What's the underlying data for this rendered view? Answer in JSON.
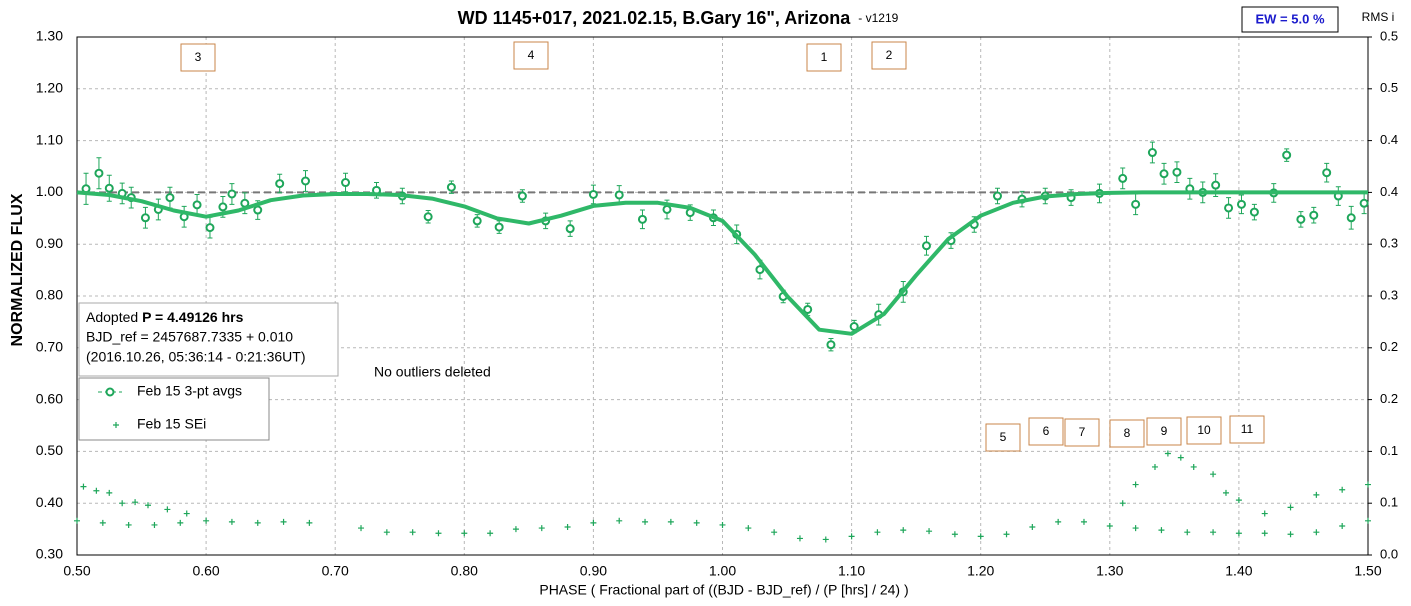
{
  "chart_data": {
    "type": "scatter",
    "title": "WD 1145+017, 2021.02.15, B.Gary 16\", Arizona",
    "version": "-  v1219",
    "xlabel": "PHASE ( Fractional part of ((BJD - BJD_ref) / (P [hrs] / 24) )",
    "ylabel": "NORMALIZED FLUX",
    "y2label": "RMS i",
    "xlim": [
      0.5,
      1.5
    ],
    "xticks": [
      {
        "value": 0.5,
        "label": "0.50"
      },
      {
        "value": 0.6,
        "label": "0.60"
      },
      {
        "value": 0.7,
        "label": "0.70"
      },
      {
        "value": 0.8,
        "label": "0.80"
      },
      {
        "value": 0.9,
        "label": "0.90"
      },
      {
        "value": 1.0,
        "label": "1.00"
      },
      {
        "value": 1.1,
        "label": "1.10"
      },
      {
        "value": 1.2,
        "label": "1.20"
      },
      {
        "value": 1.3,
        "label": "1.30"
      },
      {
        "value": 1.4,
        "label": "1.40"
      },
      {
        "value": 1.5,
        "label": "1.50"
      }
    ],
    "ylim": [
      0.3,
      1.3
    ],
    "yticks": [
      {
        "value": 0.3,
        "label": "0.30"
      },
      {
        "value": 0.4,
        "label": "0.40"
      },
      {
        "value": 0.5,
        "label": "0.50"
      },
      {
        "value": 0.6,
        "label": "0.60"
      },
      {
        "value": 0.7,
        "label": "0.70"
      },
      {
        "value": 0.8,
        "label": "0.80"
      },
      {
        "value": 0.9,
        "label": "0.90"
      },
      {
        "value": 1.0,
        "label": "1.00"
      },
      {
        "value": 1.1,
        "label": "1.10"
      },
      {
        "value": 1.2,
        "label": "1.20"
      },
      {
        "value": 1.3,
        "label": "1.30"
      }
    ],
    "y2lim": [
      0,
      0.5
    ],
    "y2ticks": [
      {
        "value": 0,
        "label": "0.0"
      },
      {
        "value": 0.05,
        "label": "0.1"
      },
      0.1,
      {
        "value": 0.15,
        "label": "0.2"
      },
      0.2,
      {
        "value": 0.25,
        "label": "0.3"
      },
      0.3,
      {
        "value": 0.35,
        "label": "0.4"
      },
      0.4,
      {
        "value": 0.45,
        "label": "0.5"
      },
      0.5
    ],
    "grid": true,
    "reference_y": 1.0,
    "legend": "left",
    "series": [
      {
        "name": "Feb 15 3-pt avgs",
        "color": "#1ea65a",
        "marker": "circle",
        "x": [
          0.507,
          0.517,
          0.525,
          0.535,
          0.542,
          0.553,
          0.563,
          0.572,
          0.583,
          0.593,
          0.603,
          0.613,
          0.62,
          0.63,
          0.64,
          0.657,
          0.677,
          0.708,
          0.732,
          0.752,
          0.772,
          0.79,
          0.81,
          0.827,
          0.845,
          0.863,
          0.882,
          0.9,
          0.92,
          0.938,
          0.957,
          0.975,
          0.993,
          1.011,
          1.029,
          1.047,
          1.066,
          1.084,
          1.102,
          1.121,
          1.14,
          1.158,
          1.177,
          1.195,
          1.213,
          1.232,
          1.25,
          1.27,
          1.292,
          1.31,
          1.32,
          1.333,
          1.342,
          1.352,
          1.362,
          1.372,
          1.382,
          1.392,
          1.402,
          1.412,
          1.427,
          1.437,
          1.448,
          1.458,
          1.468,
          1.477,
          1.487,
          1.497
        ],
        "values": [
          1.007,
          1.037,
          1.008,
          0.998,
          0.99,
          0.951,
          0.967,
          0.99,
          0.953,
          0.976,
          0.932,
          0.972,
          0.997,
          0.979,
          0.966,
          1.017,
          1.022,
          1.019,
          1.004,
          0.993,
          0.953,
          1.01,
          0.945,
          0.933,
          0.993,
          0.945,
          0.93,
          0.996,
          0.995,
          0.948,
          0.967,
          0.961,
          0.951,
          0.919,
          0.851,
          0.799,
          0.774,
          0.706,
          0.741,
          0.764,
          0.808,
          0.897,
          0.907,
          0.938,
          0.993,
          0.987,
          0.993,
          0.99,
          0.998,
          1.027,
          0.977,
          1.077,
          1.036,
          1.039,
          1.007,
          1.0,
          1.014,
          0.97,
          0.977,
          0.962,
          0.999,
          1.072,
          0.948,
          0.956,
          1.038,
          0.993,
          0.951,
          0.979
        ],
        "errors": [
          0.03,
          0.03,
          0.025,
          0.02,
          0.02,
          0.02,
          0.02,
          0.02,
          0.02,
          0.02,
          0.02,
          0.02,
          0.02,
          0.02,
          0.018,
          0.018,
          0.02,
          0.018,
          0.015,
          0.015,
          0.012,
          0.012,
          0.012,
          0.012,
          0.012,
          0.015,
          0.015,
          0.018,
          0.018,
          0.018,
          0.018,
          0.015,
          0.015,
          0.018,
          0.018,
          0.012,
          0.012,
          0.012,
          0.012,
          0.02,
          0.02,
          0.018,
          0.015,
          0.015,
          0.015,
          0.015,
          0.015,
          0.015,
          0.018,
          0.02,
          0.02,
          0.02,
          0.02,
          0.02,
          0.02,
          0.02,
          0.022,
          0.02,
          0.018,
          0.015,
          0.018,
          0.012,
          0.015,
          0.015,
          0.018,
          0.018,
          0.022,
          0.02
        ]
      },
      {
        "type": "line",
        "color": "#2fb868",
        "x": [
          0.5,
          0.525,
          0.55,
          0.575,
          0.6,
          0.625,
          0.65,
          0.675,
          0.7,
          0.725,
          0.75,
          0.775,
          0.8,
          0.825,
          0.85,
          0.875,
          0.9,
          0.925,
          0.95,
          0.975,
          1.0,
          1.025,
          1.05,
          1.075,
          1.1,
          1.125,
          1.15,
          1.175,
          1.2,
          1.225,
          1.25,
          1.275,
          1.3,
          1.325,
          1.35,
          1.375,
          1.4,
          1.425,
          1.45,
          1.475,
          1.5
        ],
        "values": [
          1.0,
          0.995,
          0.983,
          0.965,
          0.953,
          0.965,
          0.985,
          0.994,
          0.997,
          0.997,
          0.995,
          0.988,
          0.973,
          0.95,
          0.94,
          0.955,
          0.974,
          0.98,
          0.98,
          0.97,
          0.945,
          0.88,
          0.8,
          0.735,
          0.727,
          0.765,
          0.84,
          0.91,
          0.955,
          0.98,
          0.992,
          0.997,
          0.999,
          1.0,
          1.0,
          1.0,
          1.0,
          1.0,
          1.0,
          1.0,
          1.0
        ]
      },
      {
        "name": "Feb 15 SEi",
        "color": "#1ea65a",
        "marker": "plus",
        "axis": "y2",
        "x": [
          0.5,
          0.52,
          0.54,
          0.56,
          0.58,
          0.6,
          0.62,
          0.64,
          0.66,
          0.68,
          0.72,
          0.74,
          0.76,
          0.78,
          0.8,
          0.82,
          0.84,
          0.86,
          0.88,
          0.9,
          0.92,
          0.94,
          0.96,
          0.98,
          1.0,
          1.02,
          1.04,
          1.06,
          1.08,
          1.1,
          1.12,
          1.14,
          1.16,
          1.18,
          1.2,
          1.22,
          1.24,
          1.26,
          1.28,
          1.3,
          1.32,
          1.34,
          1.36,
          1.38,
          1.4,
          1.42,
          1.44,
          1.46,
          1.48,
          1.5,
          0.505,
          0.515,
          0.525,
          0.535,
          0.545,
          0.555,
          0.57,
          0.585,
          1.31,
          1.32,
          1.335,
          1.345,
          1.355,
          1.365,
          1.38,
          1.39,
          1.4,
          1.42,
          1.44,
          1.46,
          1.48,
          1.5
        ],
        "values": [
          0.033,
          0.031,
          0.029,
          0.029,
          0.031,
          0.033,
          0.032,
          0.031,
          0.032,
          0.031,
          0.026,
          0.022,
          0.022,
          0.021,
          0.021,
          0.021,
          0.025,
          0.026,
          0.027,
          0.031,
          0.033,
          0.032,
          0.032,
          0.031,
          0.029,
          0.026,
          0.022,
          0.016,
          0.015,
          0.018,
          0.022,
          0.024,
          0.023,
          0.02,
          0.018,
          0.02,
          0.027,
          0.032,
          0.032,
          0.028,
          0.026,
          0.024,
          0.022,
          0.022,
          0.021,
          0.021,
          0.02,
          0.022,
          0.028,
          0.033,
          0.066,
          0.062,
          0.06,
          0.05,
          0.051,
          0.048,
          0.044,
          0.04,
          0.05,
          0.068,
          0.085,
          0.098,
          0.094,
          0.085,
          0.078,
          0.06,
          0.053,
          0.04,
          0.046,
          0.058,
          0.063,
          0.068
        ]
      }
    ],
    "annotations": {
      "boxes": [
        "3",
        "4",
        "1",
        "2",
        "5",
        "6",
        "7",
        "8",
        "9",
        "10",
        "11"
      ],
      "info": {
        "prefix": "Adopted ",
        "period": "P = 4.49126 hrs",
        "bjd": "BJD_ref = 2457687.7335 + 0.010",
        "date": "(2016.10.26, 05:36:14 - 0:21:36UT)"
      },
      "note": "No outliers deleted",
      "ew": "EW = 5.0 %"
    }
  }
}
